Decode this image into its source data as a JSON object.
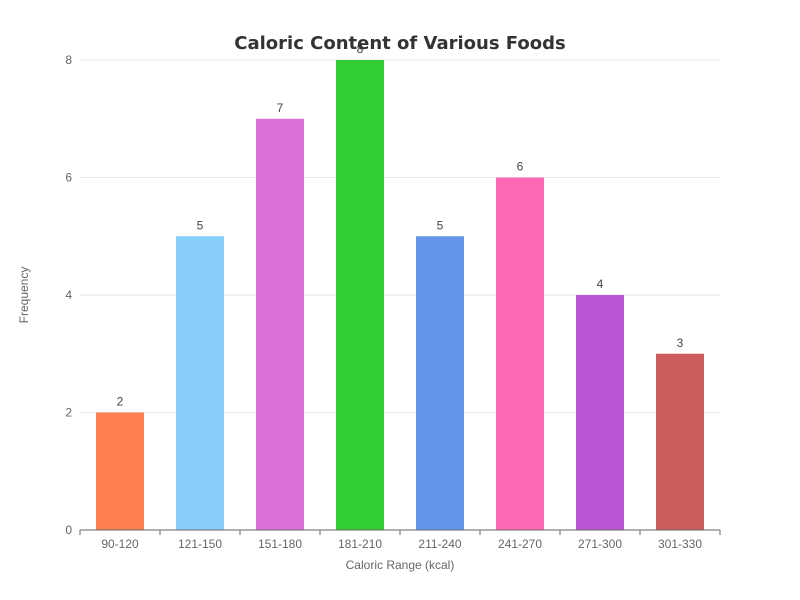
{
  "chart_data": {
    "type": "bar",
    "title": "Caloric Content of Various Foods",
    "xlabel": "Caloric Range (kcal)",
    "ylabel": "Frequency",
    "categories": [
      "90-120",
      "121-150",
      "151-180",
      "181-210",
      "211-240",
      "241-270",
      "271-300",
      "301-330"
    ],
    "values": [
      2,
      5,
      7,
      8,
      5,
      6,
      4,
      3
    ],
    "colors": [
      "#FF7F50",
      "#87CEFA",
      "#DA70D6",
      "#32CD32",
      "#6495ED",
      "#FF69B4",
      "#BA55D3",
      "#CD5C5C"
    ],
    "ylim": [
      0,
      8
    ],
    "yticks": [
      0,
      2,
      4,
      6,
      8
    ],
    "grid": true,
    "legend": "none"
  }
}
